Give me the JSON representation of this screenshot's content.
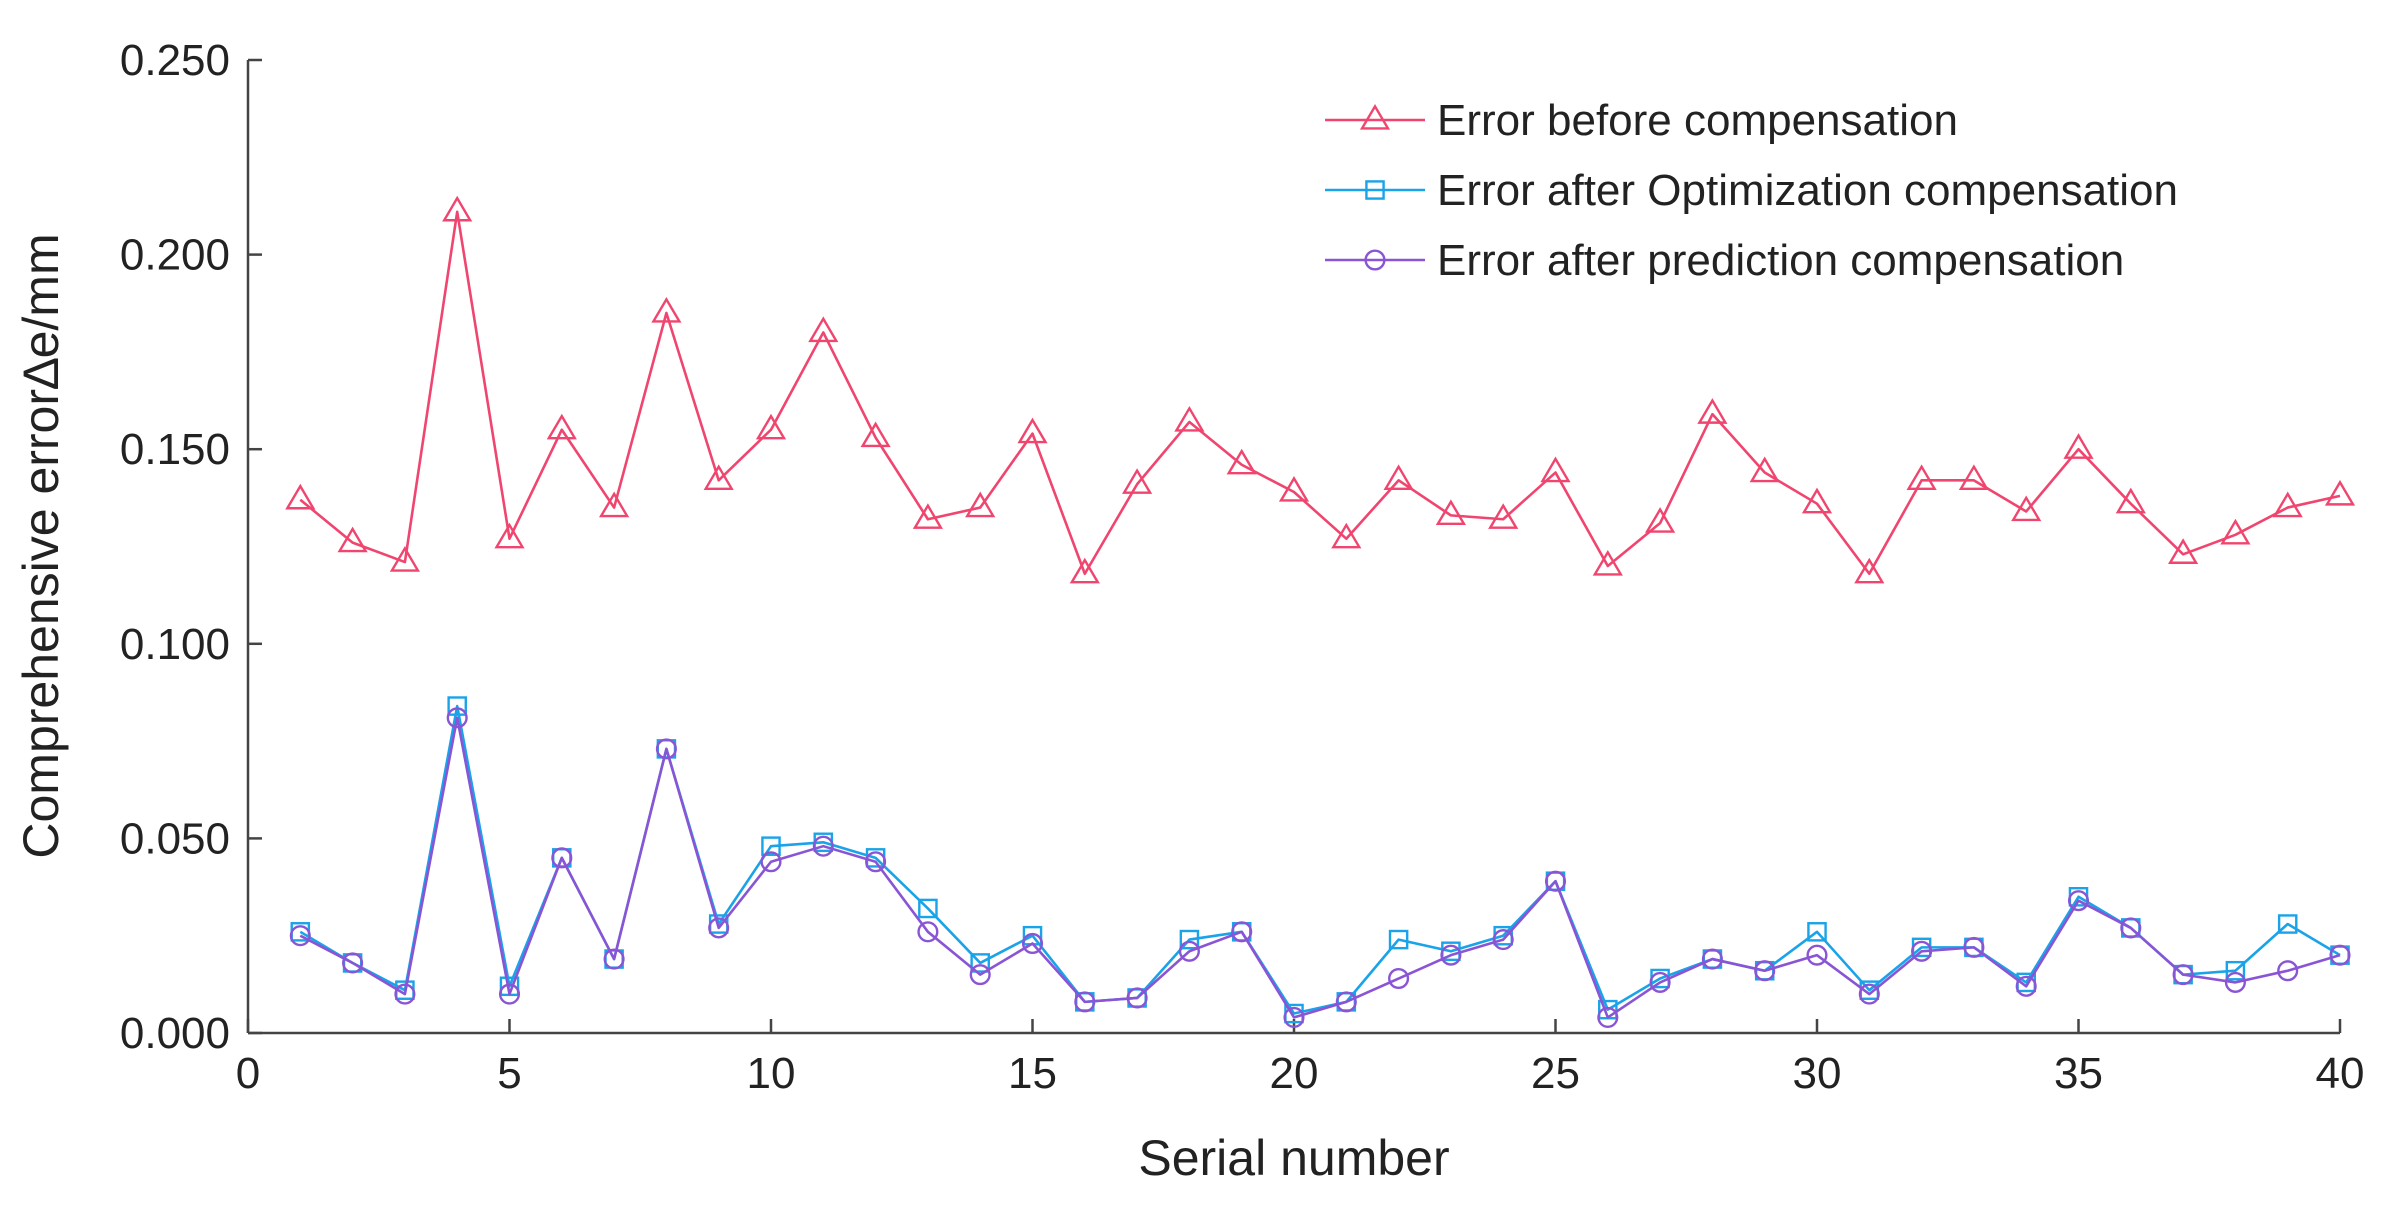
{
  "chart_data": {
    "type": "line",
    "title": "",
    "xlabel": "Serial number",
    "ylabel": "Comprehensive error∆e/mm",
    "xlim": [
      0,
      40
    ],
    "ylim": [
      0,
      0.25
    ],
    "xticks": [
      0,
      5,
      10,
      15,
      20,
      25,
      30,
      35,
      40
    ],
    "yticks": [
      0.0,
      0.05,
      0.1,
      0.15,
      0.2,
      0.25
    ],
    "ytick_labels": [
      "0.000",
      "0.050",
      "0.100",
      "0.150",
      "0.200",
      "0.250"
    ],
    "grid": false,
    "legend_position": "top-right",
    "x": [
      1,
      2,
      3,
      4,
      5,
      6,
      7,
      8,
      9,
      10,
      11,
      12,
      13,
      14,
      15,
      16,
      17,
      18,
      19,
      20,
      21,
      22,
      23,
      24,
      25,
      26,
      27,
      28,
      29,
      30,
      31,
      32,
      33,
      34,
      35,
      36,
      37,
      38,
      39,
      40
    ],
    "series": [
      {
        "name": "Error before compensation",
        "color": "#f0456e",
        "marker": "triangle",
        "values": [
          0.137,
          0.126,
          0.121,
          0.211,
          0.127,
          0.155,
          0.135,
          0.185,
          0.142,
          0.155,
          0.18,
          0.153,
          0.132,
          0.135,
          0.154,
          0.118,
          0.141,
          0.157,
          0.146,
          0.139,
          0.127,
          0.142,
          0.133,
          0.132,
          0.144,
          0.12,
          0.131,
          0.159,
          0.144,
          0.136,
          0.118,
          0.142,
          0.142,
          0.134,
          0.15,
          0.136,
          0.123,
          0.128,
          0.135,
          0.138
        ]
      },
      {
        "name": "Error after Optimization compensation",
        "color": "#1aa3e8",
        "marker": "square",
        "values": [
          0.026,
          0.018,
          0.011,
          0.084,
          0.012,
          0.045,
          0.019,
          0.073,
          0.028,
          0.048,
          0.049,
          0.045,
          0.032,
          0.018,
          0.025,
          0.008,
          0.009,
          0.024,
          0.026,
          0.005,
          0.008,
          0.024,
          0.021,
          0.025,
          0.039,
          0.006,
          0.014,
          0.019,
          0.016,
          0.026,
          0.011,
          0.022,
          0.022,
          0.013,
          0.035,
          0.027,
          0.015,
          0.016,
          0.028,
          0.02
        ]
      },
      {
        "name": "Error after prediction compensation",
        "color": "#8a55d4",
        "marker": "circle",
        "values": [
          0.025,
          0.018,
          0.01,
          0.081,
          0.01,
          0.045,
          0.019,
          0.073,
          0.027,
          0.044,
          0.048,
          0.044,
          0.026,
          0.015,
          0.023,
          0.008,
          0.009,
          0.021,
          0.026,
          0.004,
          0.008,
          0.014,
          0.02,
          0.024,
          0.039,
          0.004,
          0.013,
          0.019,
          0.016,
          0.02,
          0.01,
          0.021,
          0.022,
          0.012,
          0.034,
          0.027,
          0.015,
          0.013,
          0.016,
          0.02
        ]
      }
    ]
  }
}
